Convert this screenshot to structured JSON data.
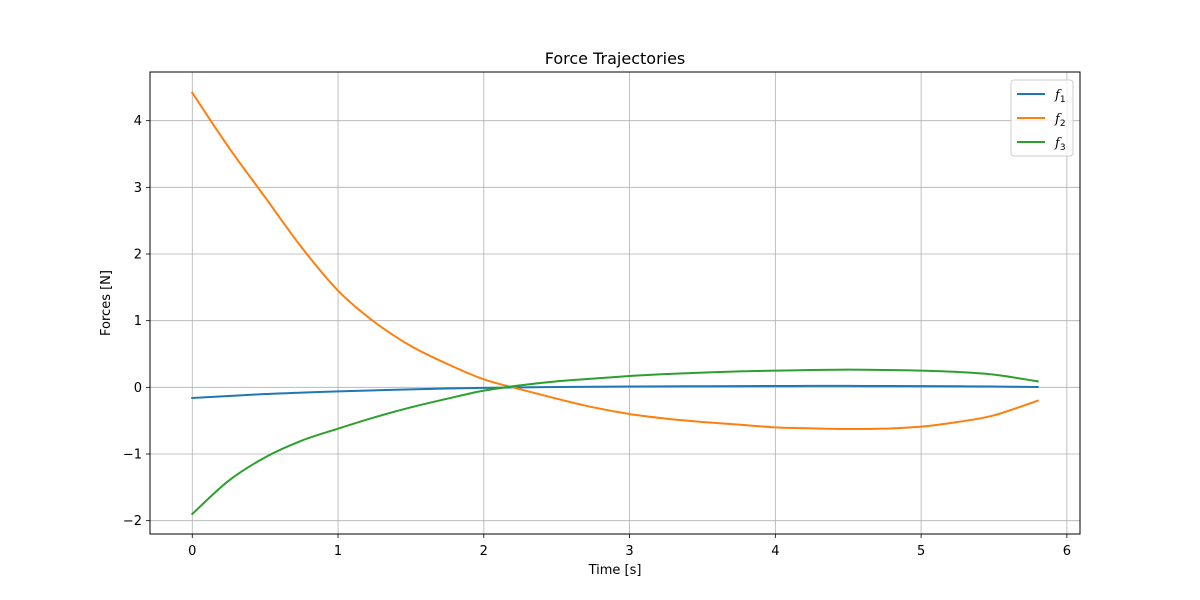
{
  "chart_data": {
    "type": "line",
    "title": "Force Trajectories",
    "xlabel": "Time [s]",
    "ylabel": "Forces [N]",
    "xlim": [
      -0.29,
      6.09
    ],
    "ylim": [
      -2.2,
      4.73
    ],
    "xticks": [
      0,
      1,
      2,
      3,
      4,
      5,
      6
    ],
    "xtick_labels": [
      "0",
      "1",
      "2",
      "3",
      "4",
      "5",
      "6"
    ],
    "yticks": [
      -2,
      -1,
      0,
      1,
      2,
      3,
      4
    ],
    "ytick_labels": [
      "−2",
      "−1",
      "0",
      "1",
      "2",
      "3",
      "4"
    ],
    "grid": true,
    "legend_position": "top-right",
    "x": [
      0,
      0.25,
      0.5,
      0.75,
      1.0,
      1.25,
      1.5,
      1.75,
      2.0,
      2.25,
      2.5,
      2.75,
      3.0,
      3.25,
      3.5,
      3.75,
      4.0,
      4.25,
      4.5,
      4.75,
      5.0,
      5.25,
      5.5,
      5.8
    ],
    "series": [
      {
        "name": "f",
        "subscript": "1",
        "color": "#1f77b4",
        "values": [
          -0.16,
          -0.13,
          -0.1,
          -0.08,
          -0.06,
          -0.045,
          -0.03,
          -0.018,
          -0.008,
          0.0,
          0.005,
          0.009,
          0.012,
          0.015,
          0.017,
          0.019,
          0.02,
          0.021,
          0.021,
          0.02,
          0.019,
          0.016,
          0.012,
          0.005
        ]
      },
      {
        "name": "f",
        "subscript": "2",
        "color": "#ff7f0e",
        "values": [
          4.42,
          3.6,
          2.85,
          2.1,
          1.45,
          0.98,
          0.62,
          0.35,
          0.12,
          -0.03,
          -0.17,
          -0.3,
          -0.4,
          -0.47,
          -0.52,
          -0.56,
          -0.6,
          -0.615,
          -0.625,
          -0.62,
          -0.59,
          -0.52,
          -0.42,
          -0.2
        ]
      },
      {
        "name": "f",
        "subscript": "3",
        "color": "#2ca02c",
        "values": [
          -1.9,
          -1.4,
          -1.05,
          -0.8,
          -0.62,
          -0.45,
          -0.3,
          -0.17,
          -0.05,
          0.03,
          0.09,
          0.13,
          0.17,
          0.2,
          0.22,
          0.24,
          0.25,
          0.26,
          0.265,
          0.26,
          0.25,
          0.23,
          0.19,
          0.09
        ]
      }
    ]
  }
}
